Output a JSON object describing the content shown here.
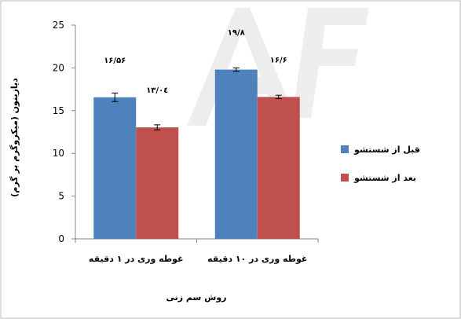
{
  "chart_data": {
    "type": "bar",
    "categories": [
      "غوطه وری در ۱ دقیقه",
      "غوطه وری در ۱۰ دقیقه"
    ],
    "series": [
      {
        "name": "قبل از شستشو",
        "values": [
          16.56,
          19.8
        ],
        "errors": [
          0.5,
          0.2
        ],
        "labels": [
          "۱۶/۵۶",
          "۱۹/۸"
        ]
      },
      {
        "name": "بعد از شستشو",
        "values": [
          13.04,
          16.6
        ],
        "errors": [
          0.3,
          0.2
        ],
        "labels": [
          "۱۳/۰٤",
          "۱۶/۶"
        ]
      }
    ],
    "xlabel": "روش سم زنی",
    "ylabel": "دیازینون (میکروگرم بر گرم)",
    "ylim": [
      0,
      25
    ],
    "yticks": [
      0,
      5,
      10,
      15,
      20,
      25
    ],
    "grid": false,
    "legend_position": "right",
    "watermark": "AF",
    "colors": [
      "#4f81bd",
      "#c0504d"
    ]
  }
}
